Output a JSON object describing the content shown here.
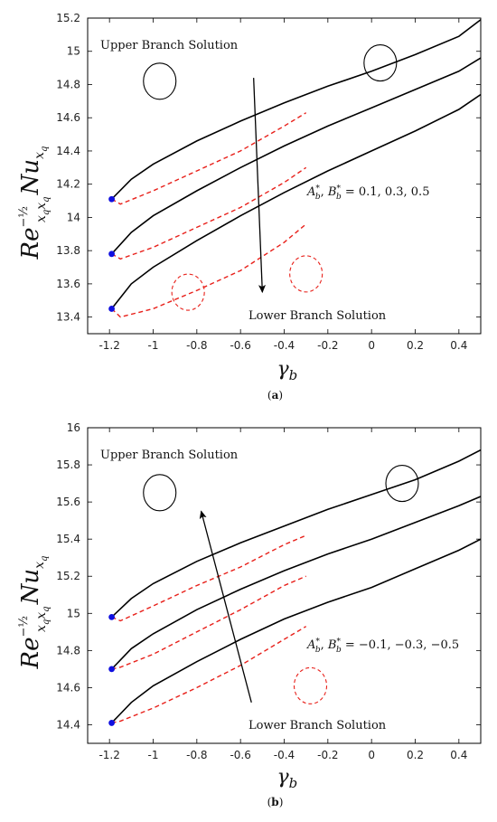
{
  "chart_data": [
    {
      "type": "line",
      "caption": "(a)",
      "xlabel": "γb",
      "ylabel": "Re^(-1/2)_{xq xq} Nu_{xq}",
      "xlim": [
        -1.3,
        0.5
      ],
      "ylim": [
        13.3,
        15.2
      ],
      "xticks": [
        "-1.2",
        "-1",
        "-0.8",
        "-0.6",
        "-0.4",
        "-0.2",
        "0",
        "0.2",
        "0.4"
      ],
      "yticks": [
        "13.4",
        "13.6",
        "13.8",
        "14",
        "14.2",
        "14.4",
        "14.6",
        "14.8",
        "15",
        "15.2"
      ],
      "upper_branch": [
        {
          "name": "A*b, B*b = 0.1",
          "x": [
            -1.19,
            -1.1,
            -1.0,
            -0.8,
            -0.6,
            -0.4,
            -0.2,
            0.0,
            0.2,
            0.4,
            0.5
          ],
          "y": [
            14.11,
            14.23,
            14.32,
            14.46,
            14.58,
            14.69,
            14.79,
            14.88,
            14.98,
            15.09,
            15.19
          ]
        },
        {
          "name": "A*b, B*b = 0.3",
          "x": [
            -1.19,
            -1.1,
            -1.0,
            -0.8,
            -0.6,
            -0.4,
            -0.2,
            0.0,
            0.2,
            0.4,
            0.5
          ],
          "y": [
            13.78,
            13.91,
            14.01,
            14.16,
            14.3,
            14.43,
            14.55,
            14.66,
            14.77,
            14.88,
            14.96
          ]
        },
        {
          "name": "A*b, B*b = 0.5",
          "x": [
            -1.19,
            -1.1,
            -1.0,
            -0.8,
            -0.6,
            -0.4,
            -0.2,
            0.0,
            0.2,
            0.4,
            0.5
          ],
          "y": [
            13.45,
            13.6,
            13.7,
            13.86,
            14.01,
            14.15,
            14.28,
            14.4,
            14.52,
            14.65,
            14.74
          ]
        }
      ],
      "lower_branch": [
        {
          "x": [
            -1.19,
            -1.15,
            -1.0,
            -0.8,
            -0.6,
            -0.4,
            -0.3
          ],
          "y": [
            14.11,
            14.08,
            14.16,
            14.28,
            14.4,
            14.55,
            14.63
          ]
        },
        {
          "x": [
            -1.19,
            -1.15,
            -1.0,
            -0.8,
            -0.6,
            -0.4,
            -0.3
          ],
          "y": [
            13.78,
            13.75,
            13.82,
            13.94,
            14.06,
            14.21,
            14.3
          ]
        },
        {
          "x": [
            -1.19,
            -1.15,
            -1.0,
            -0.8,
            -0.6,
            -0.4,
            -0.3
          ],
          "y": [
            13.45,
            13.4,
            13.45,
            13.56,
            13.68,
            13.85,
            13.96
          ]
        }
      ],
      "critical_points": {
        "x": [
          -1.19,
          -1.19,
          -1.19
        ],
        "y": [
          14.11,
          13.78,
          13.45
        ]
      },
      "annotations": {
        "upper": "Upper Branch Solution",
        "lower": "Lower Branch Solution",
        "params": "A*b, B*b = 0.1, 0.3, 0.5"
      },
      "arrow": {
        "from": [
          -0.54,
          14.84
        ],
        "to": [
          -0.5,
          13.55
        ]
      },
      "circles_solid": [
        {
          "x": -0.97,
          "y": 14.82
        },
        {
          "x": 0.04,
          "y": 14.93
        }
      ],
      "circles_dashed": [
        {
          "x": -0.84,
          "y": 13.55
        },
        {
          "x": -0.3,
          "y": 13.66
        }
      ]
    },
    {
      "type": "line",
      "caption": "(b)",
      "xlabel": "γb",
      "ylabel": "Re^(-1/2)_{xq xq} Nu_{xq}",
      "xlim": [
        -1.3,
        0.5
      ],
      "ylim": [
        14.3,
        16.0
      ],
      "xticks": [
        "-1.2",
        "-1",
        "-0.8",
        "-0.6",
        "-0.4",
        "-0.2",
        "0",
        "0.2",
        "0.4"
      ],
      "yticks": [
        "14.4",
        "14.6",
        "14.8",
        "15",
        "15.2",
        "15.4",
        "15.6",
        "15.8",
        "16"
      ],
      "upper_branch": [
        {
          "name": "A*b, B*b = -0.1",
          "x": [
            -1.19,
            -1.1,
            -1.0,
            -0.8,
            -0.6,
            -0.4,
            -0.2,
            0.0,
            0.2,
            0.4,
            0.5
          ],
          "y": [
            14.98,
            15.08,
            15.16,
            15.28,
            15.38,
            15.47,
            15.56,
            15.64,
            15.72,
            15.82,
            15.88
          ]
        },
        {
          "name": "A*b, B*b = -0.3",
          "x": [
            -1.19,
            -1.1,
            -1.0,
            -0.8,
            -0.6,
            -0.4,
            -0.2,
            0.0,
            0.2,
            0.4,
            0.5
          ],
          "y": [
            14.7,
            14.81,
            14.89,
            15.02,
            15.13,
            15.23,
            15.32,
            15.4,
            15.49,
            15.58,
            15.63
          ]
        },
        {
          "name": "A*b, B*b = -0.5",
          "x": [
            -1.19,
            -1.1,
            -1.0,
            -0.8,
            -0.6,
            -0.4,
            -0.2,
            0.0,
            0.2,
            0.4,
            0.5
          ],
          "y": [
            14.41,
            14.52,
            14.61,
            14.74,
            14.86,
            14.97,
            15.06,
            15.14,
            15.24,
            15.34,
            15.4
          ]
        }
      ],
      "lower_branch": [
        {
          "x": [
            -1.19,
            -1.15,
            -1.0,
            -0.8,
            -0.6,
            -0.4,
            -0.3
          ],
          "y": [
            14.98,
            14.96,
            15.04,
            15.15,
            15.25,
            15.37,
            15.42
          ]
        },
        {
          "x": [
            -1.19,
            -1.15,
            -1.0,
            -0.8,
            -0.6,
            -0.4,
            -0.3
          ],
          "y": [
            14.7,
            14.71,
            14.78,
            14.9,
            15.02,
            15.15,
            15.2
          ]
        },
        {
          "x": [
            -1.19,
            -1.15,
            -1.0,
            -0.8,
            -0.6,
            -0.4,
            -0.3
          ],
          "y": [
            14.41,
            14.42,
            14.49,
            14.6,
            14.72,
            14.86,
            14.93
          ]
        }
      ],
      "critical_points": {
        "x": [
          -1.19,
          -1.19,
          -1.19
        ],
        "y": [
          14.98,
          14.7,
          14.41
        ]
      },
      "annotations": {
        "upper": "Upper Branch Solution",
        "lower": "Lower Branch Solution",
        "params": "A*b, B*b = -0.1, -0.3, -0.5"
      },
      "arrow": {
        "from": [
          -0.55,
          14.52
        ],
        "to": [
          -0.78,
          15.55
        ]
      },
      "circles_solid": [
        {
          "x": -0.97,
          "y": 15.65
        },
        {
          "x": 0.14,
          "y": 15.7
        }
      ],
      "circles_dashed": [
        {
          "x": -0.28,
          "y": 14.61
        }
      ]
    }
  ],
  "colors": {
    "upper": "#000000",
    "lower": "#e8201a",
    "point": "#1010e0"
  }
}
